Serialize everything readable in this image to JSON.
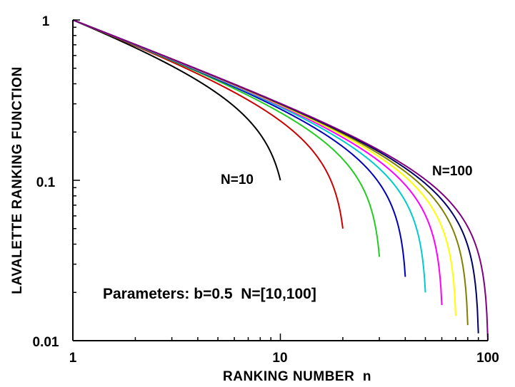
{
  "chart_data": {
    "type": "line",
    "xlabel": "RANKING NUMBER  n",
    "ylabel": "LAVALETTE RANKING FUNCTION",
    "xscale": "log",
    "yscale": "log",
    "xlim": [
      1,
      100
    ],
    "ylim": [
      0.01,
      1
    ],
    "grid": false,
    "x_ticks": [
      "1",
      "10",
      "100"
    ],
    "y_ticks": [
      "1",
      "0.1",
      "0.01"
    ],
    "b": 0.5,
    "annotations": {
      "low": "N=10",
      "high": "N=100",
      "params": "Parameters: b=0.5  N=[10,100]"
    },
    "series": [
      {
        "N": 10,
        "color": "#000000"
      },
      {
        "N": 20,
        "color": "#cc0000"
      },
      {
        "N": 30,
        "color": "#22cc22"
      },
      {
        "N": 40,
        "color": "#0000bb"
      },
      {
        "N": 50,
        "color": "#00cccc"
      },
      {
        "N": 60,
        "color": "#ff00ff"
      },
      {
        "N": 70,
        "color": "#ffff00"
      },
      {
        "N": 80,
        "color": "#808000"
      },
      {
        "N": 90,
        "color": "#000066"
      },
      {
        "N": 100,
        "color": "#800080"
      }
    ]
  }
}
